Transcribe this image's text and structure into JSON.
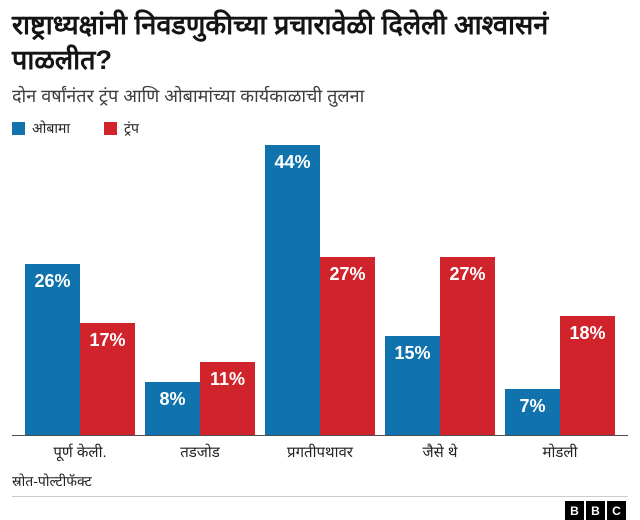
{
  "header": {
    "title": "राष्ट्राध्यक्षांनी निवडणुकीच्या प्रचारावेळी दिलेली आश्वासनं पाळलीत?",
    "subtitle": "दोन वर्षांनंतर ट्रंप आणि ओबामांच्या कार्यकाळाची तुलना"
  },
  "colors": {
    "obama_blue": "#1173ad",
    "trump_red": "#d0232b"
  },
  "chart_data": {
    "type": "bar",
    "categories": [
      "पूर्ण केली.",
      "तडजोड",
      "प्रगतीपथावर",
      "जैसे थे",
      "मोडली"
    ],
    "series": [
      {
        "name": "ओबामा",
        "color": "#1173ad",
        "values": [
          26,
          8,
          44,
          15,
          7
        ]
      },
      {
        "name": "ट्रंप",
        "color": "#d0232b",
        "values": [
          17,
          11,
          27,
          27,
          18
        ]
      }
    ],
    "value_suffix": "%",
    "ylim": [
      0,
      44
    ],
    "grid": false,
    "legend_position": "top-left",
    "value_labels": "inside-top",
    "xlabel": "",
    "ylabel": ""
  },
  "footer": {
    "source": "स्रोत-पोल्टीफॅक्ट",
    "logo_letters": [
      "B",
      "B",
      "C"
    ]
  }
}
